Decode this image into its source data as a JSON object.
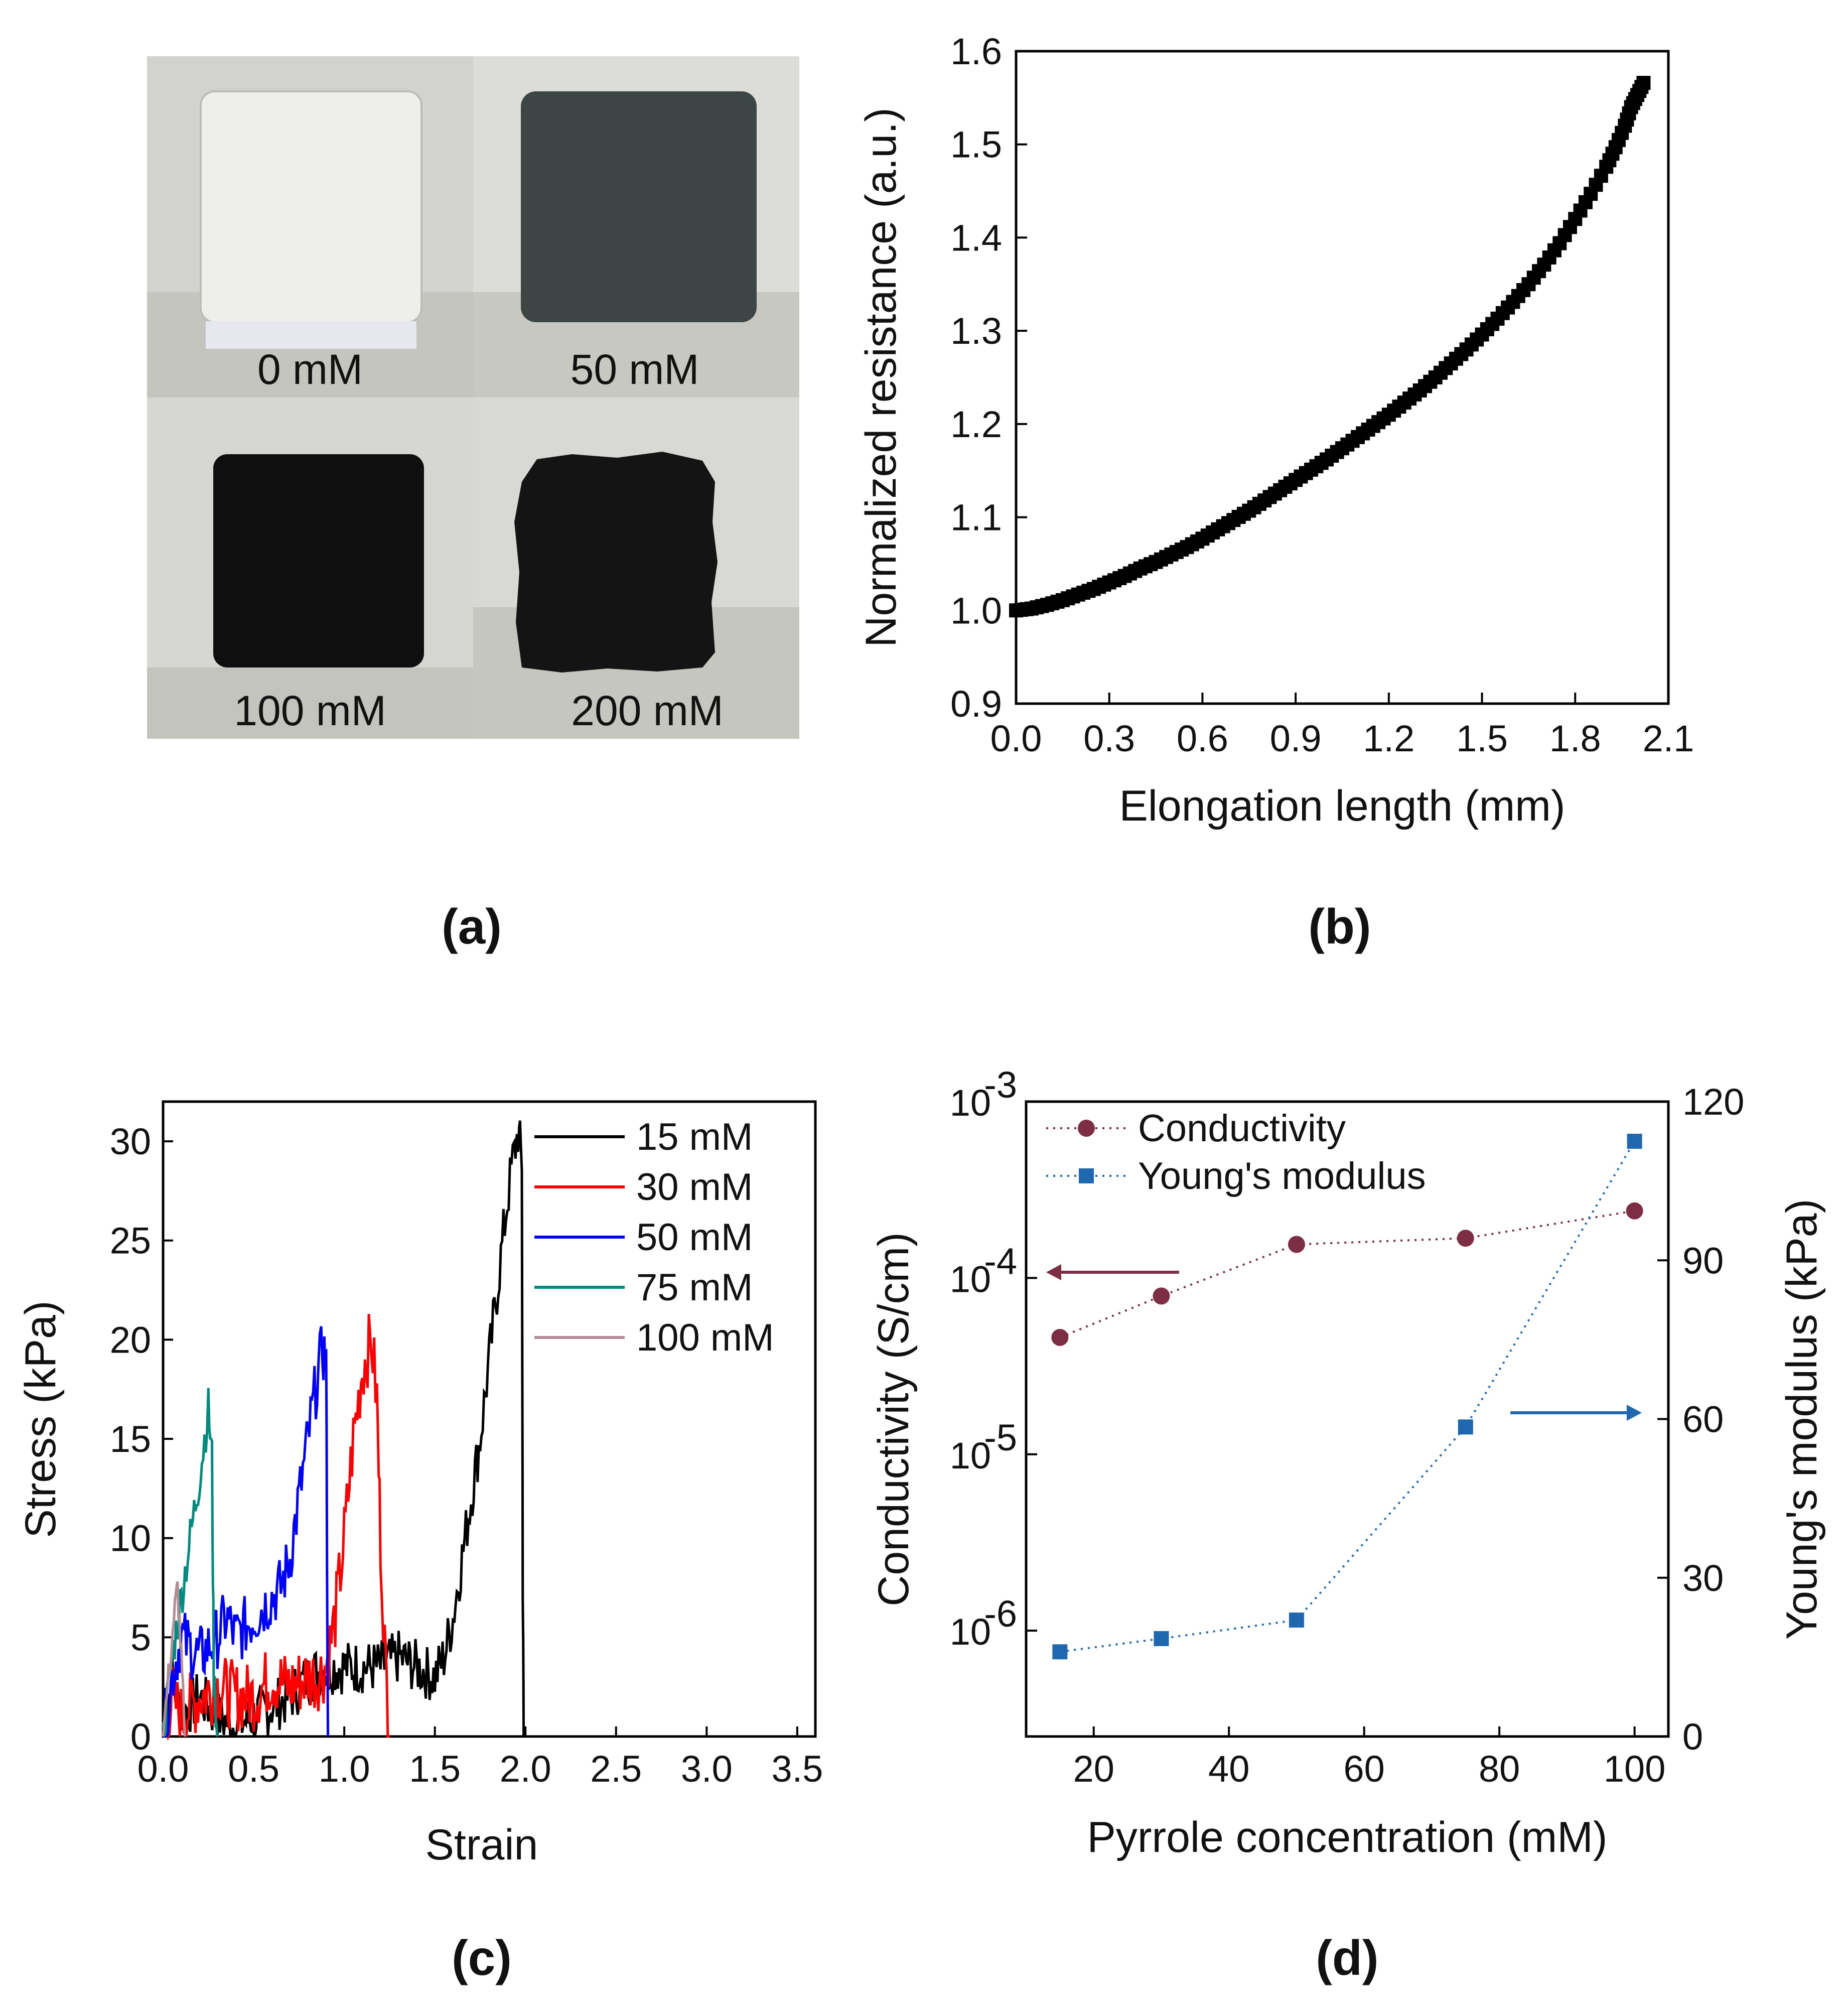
{
  "panels": {
    "a": {
      "tag": "(a)",
      "photos": [
        {
          "label": "0 mM",
          "color": "#eeeeea"
        },
        {
          "label": "50 mM",
          "color": "#3d4545"
        },
        {
          "label": "100 mM",
          "color": "#0f0f10"
        },
        {
          "label": "200 mM",
          "color": "#141415"
        }
      ]
    },
    "b": {
      "tag": "(b)"
    },
    "c": {
      "tag": "(c)"
    },
    "d": {
      "tag": "(d)"
    }
  },
  "chart_data": [
    {
      "id": "b",
      "type": "scatter",
      "xlabel": "Elongation length (mm)",
      "ylabel": "Normalized resistance (a.u.)",
      "xlim": [
        0.0,
        2.1
      ],
      "ylim": [
        0.9,
        1.6
      ],
      "xticks": [
        "0.0",
        "0.3",
        "0.6",
        "0.9",
        "1.2",
        "1.5",
        "1.8",
        "2.1"
      ],
      "yticks": [
        "0.9",
        "1.0",
        "1.1",
        "1.2",
        "1.3",
        "1.4",
        "1.5",
        "1.6"
      ],
      "color": "#000000",
      "x": [
        0.0,
        0.05,
        0.1,
        0.15,
        0.2,
        0.25,
        0.3,
        0.35,
        0.4,
        0.45,
        0.5,
        0.55,
        0.6,
        0.65,
        0.7,
        0.75,
        0.8,
        0.85,
        0.9,
        0.95,
        1.0,
        1.05,
        1.1,
        1.15,
        1.2,
        1.25,
        1.3,
        1.35,
        1.4,
        1.45,
        1.5,
        1.55,
        1.6,
        1.65,
        1.7,
        1.75,
        1.8,
        1.85,
        1.9,
        1.93,
        1.96,
        1.98,
        2.0,
        2.02
      ],
      "y": [
        1.0,
        1.002,
        1.006,
        1.011,
        1.017,
        1.023,
        1.03,
        1.037,
        1.045,
        1.052,
        1.06,
        1.068,
        1.077,
        1.087,
        1.097,
        1.107,
        1.118,
        1.129,
        1.14,
        1.151,
        1.162,
        1.174,
        1.186,
        1.198,
        1.21,
        1.223,
        1.236,
        1.25,
        1.265,
        1.28,
        1.296,
        1.313,
        1.331,
        1.35,
        1.371,
        1.394,
        1.42,
        1.447,
        1.476,
        1.497,
        1.52,
        1.54,
        1.553,
        1.566
      ]
    },
    {
      "id": "c",
      "type": "line",
      "xlabel": "Strain",
      "ylabel": "Stress (kPa)",
      "xlim": [
        0.0,
        3.6
      ],
      "ylim": [
        0,
        32
      ],
      "xticks": [
        "0.0",
        "0.5",
        "1.0",
        "1.5",
        "2.0",
        "2.5",
        "3.0",
        "3.5"
      ],
      "yticks": [
        "0",
        "5",
        "10",
        "15",
        "20",
        "25",
        "30"
      ],
      "series": [
        {
          "name": "15 mM",
          "color": "#000000",
          "x": [
            0.0,
            0.05,
            0.1,
            0.2,
            0.3,
            0.4,
            0.5,
            0.6,
            0.7,
            0.8,
            0.9,
            1.0,
            1.1,
            1.2,
            1.3,
            1.4,
            1.5,
            1.55,
            1.6,
            1.65,
            1.7,
            1.75,
            1.8,
            1.85,
            1.9,
            1.93,
            1.96,
            1.98,
            1.985,
            1.99
          ],
          "y": [
            0,
            3,
            1,
            2,
            1,
            0.5,
            1,
            1.5,
            2,
            3,
            3.5,
            3.5,
            3.5,
            3.5,
            4,
            3.5,
            3,
            4,
            6,
            9,
            12,
            15,
            19,
            23,
            27,
            29,
            30.5,
            29,
            8,
            0
          ],
          "noise": 1.4
        },
        {
          "name": "30 mM",
          "color": "#ff0000",
          "x": [
            0.0,
            0.05,
            0.1,
            0.2,
            0.3,
            0.4,
            0.5,
            0.6,
            0.7,
            0.8,
            0.85,
            0.9,
            0.95,
            1.0,
            1.05,
            1.1,
            1.15,
            1.18,
            1.2,
            1.23,
            1.25
          ],
          "y": [
            0,
            2,
            1,
            2,
            2.5,
            2,
            2,
            3,
            2.5,
            3,
            3,
            3.5,
            6,
            10,
            15,
            18.5,
            20,
            17,
            10,
            3,
            0
          ],
          "noise": 1.8
        },
        {
          "name": "50 mM",
          "color": "#0000ff",
          "x": [
            0.0,
            0.05,
            0.1,
            0.2,
            0.3,
            0.35,
            0.4,
            0.5,
            0.6,
            0.65,
            0.7,
            0.75,
            0.8,
            0.85,
            0.88,
            0.9,
            0.91
          ],
          "y": [
            0,
            3,
            5,
            4,
            5,
            6,
            5,
            6,
            7,
            7.5,
            9,
            12,
            15,
            18,
            19.5,
            19,
            0
          ],
          "noise": 1.6
        },
        {
          "name": "75 mM",
          "color": "#008b80",
          "x": [
            0.0,
            0.05,
            0.1,
            0.15,
            0.2,
            0.25,
            0.27,
            0.28,
            0.3
          ],
          "y": [
            0,
            4,
            7,
            10,
            13,
            16.5,
            14,
            3,
            0
          ],
          "noise": 1.2
        },
        {
          "name": "100 mM",
          "color": "#b48c96",
          "x": [
            0.0,
            0.03,
            0.06,
            0.08,
            0.1,
            0.12
          ],
          "y": [
            0,
            3,
            6,
            7.5,
            4,
            0
          ],
          "noise": 0.8
        }
      ]
    },
    {
      "id": "d",
      "type": "scatter",
      "xlabel": "Pyrrole concentration (mM)",
      "ylabel": "Conductivity (S/cm)",
      "y2label": "Young's modulus (kPa)",
      "xlim": [
        10,
        105
      ],
      "xticks": [
        "20",
        "40",
        "60",
        "80",
        "100"
      ],
      "ylim_log10": [
        -6.6,
        -3.0
      ],
      "yticks_exp": [
        "-6",
        "-5",
        "-4",
        "-3"
      ],
      "ytick_base": "10",
      "y2lim": [
        0,
        120
      ],
      "y2ticks": [
        "0",
        "30",
        "60",
        "90",
        "120"
      ],
      "series": [
        {
          "name": "Conductivity",
          "axis": "left",
          "marker": "circle",
          "color": "#7d2e45",
          "x": [
            15,
            30,
            50,
            75,
            100
          ],
          "y": [
            4.6e-05,
            7.9e-05,
            0.000155,
            0.000168,
            0.00024
          ]
        },
        {
          "name": "Young's modulus",
          "axis": "right",
          "marker": "square",
          "color": "#1f68b0",
          "x": [
            15,
            30,
            50,
            75,
            100
          ],
          "y": [
            16,
            18.5,
            22,
            58.5,
            112.5
          ]
        }
      ]
    }
  ]
}
